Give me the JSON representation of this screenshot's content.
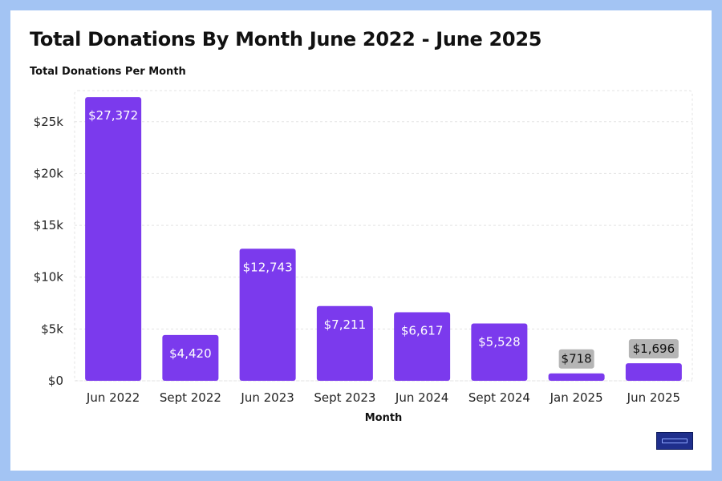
{
  "chart_data": {
    "type": "bar",
    "title": "Total Donations By Month June 2022 - June 2025",
    "subtitle": "Total Donations Per Month",
    "xlabel": "Month",
    "ylabel": "",
    "categories": [
      "Jun 2022",
      "Sept 2022",
      "Jun 2023",
      "Sept 2023",
      "Jun 2024",
      "Sept 2024",
      "Jan 2025",
      "Jun 2025"
    ],
    "values": [
      27372,
      4420,
      12743,
      7211,
      6617,
      5528,
      718,
      1696
    ],
    "data_labels": [
      "$27,372",
      "$4,420",
      "$12,743",
      "$7,211",
      "$6,617",
      "$5,528",
      "$718",
      "$1,696"
    ],
    "ylim": [
      0,
      28000
    ],
    "yticks": [
      0,
      5000,
      10000,
      15000,
      20000,
      25000
    ],
    "ytick_labels": [
      "$0",
      "$5k",
      "$10k",
      "$15k",
      "$20k",
      "$25k"
    ],
    "grid": true,
    "colors": {
      "bar": "#7b3aed",
      "label_inside": "#ffffff",
      "label_outside_bg": "#b5b5b5",
      "label_outside_text": "#111111",
      "grid": "#e3e3e3",
      "frame": "#a3c4f3"
    }
  }
}
